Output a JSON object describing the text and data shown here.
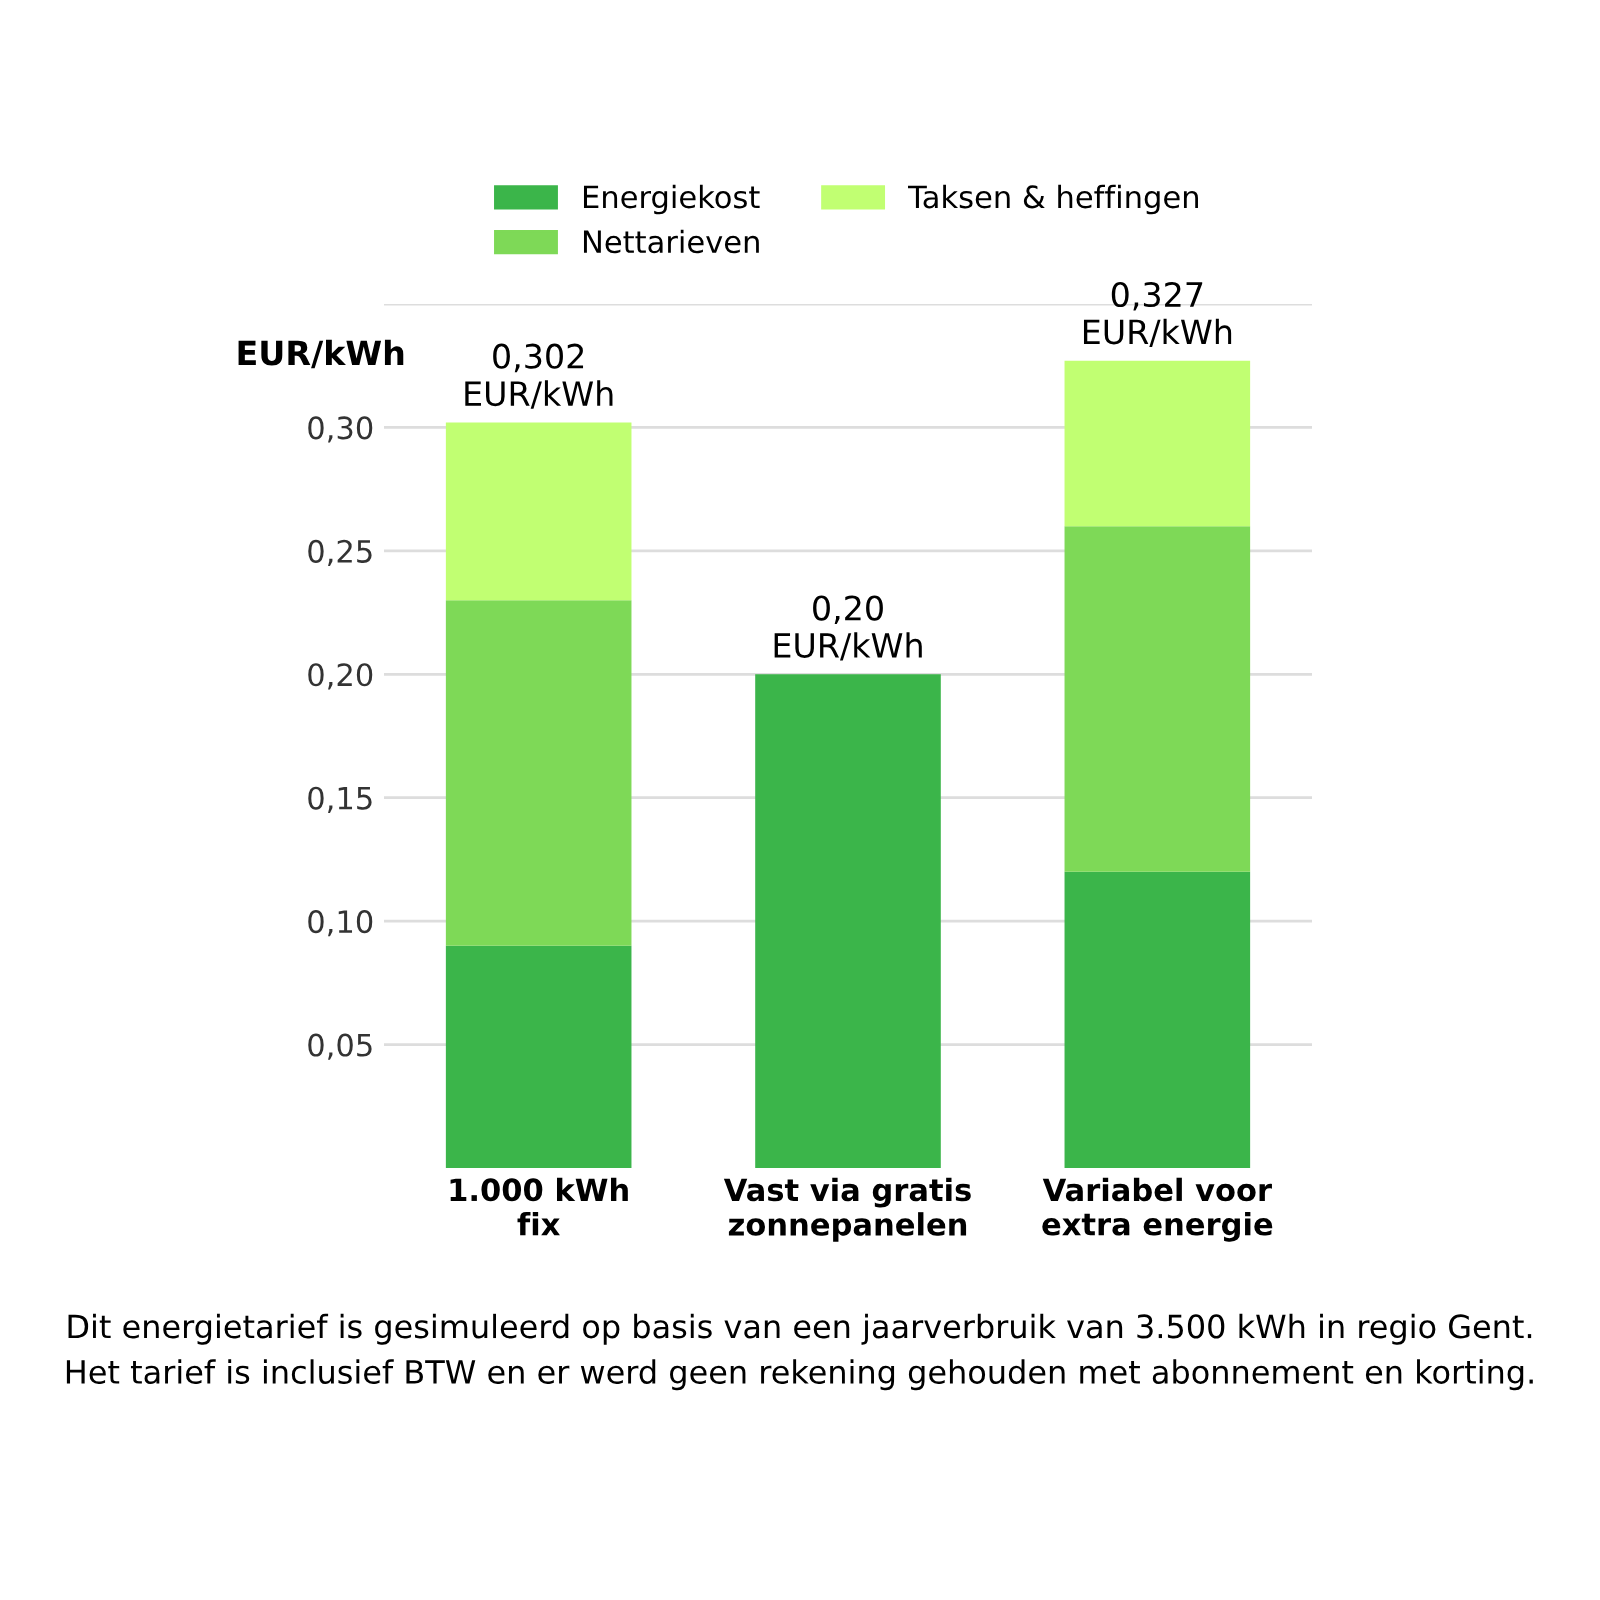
{
  "chart_data": {
    "type": "bar",
    "stacked": true,
    "ylabel": "EUR/kWh",
    "categories": [
      "1.000 kWh\nfix",
      "Vast via gratis\nzonnepanelen",
      "Variabel voor\nextra energie"
    ],
    "series": [
      {
        "name": "Energiekost",
        "color": "#3bb54a",
        "values": [
          0.09,
          0.2,
          0.12
        ]
      },
      {
        "name": "Nettarieven",
        "color": "#7ed957",
        "values": [
          0.14,
          null,
          0.14
        ]
      },
      {
        "name": "Taksen & heffingen",
        "color": "#c1ff72",
        "values": [
          0.072,
          null,
          0.067
        ]
      }
    ],
    "totals": [
      "0,302\nEUR/kWh",
      "0,20\nEUR/kWh",
      "0,327\nEUR/kWh"
    ],
    "ylim": [
      0,
      0.35
    ],
    "yticks": [
      {
        "value": 0.05,
        "label": "0,05"
      },
      {
        "value": 0.1,
        "label": "0,10"
      },
      {
        "value": 0.15,
        "label": "0,15"
      },
      {
        "value": 0.2,
        "label": "0,20"
      },
      {
        "value": 0.25,
        "label": "0,25"
      },
      {
        "value": 0.3,
        "label": "0,30"
      },
      {
        "value": 0.35,
        "label": null
      }
    ],
    "grid": "y",
    "legend": "top",
    "annotations": [
      "Dit energietarief is gesimuleerd op basis van een jaarverbruik van 3.500 kWh in regio Gent.\nHet tarief is inclusief BTW en er werd geen rekening gehouden met abonnement en korting."
    ]
  }
}
